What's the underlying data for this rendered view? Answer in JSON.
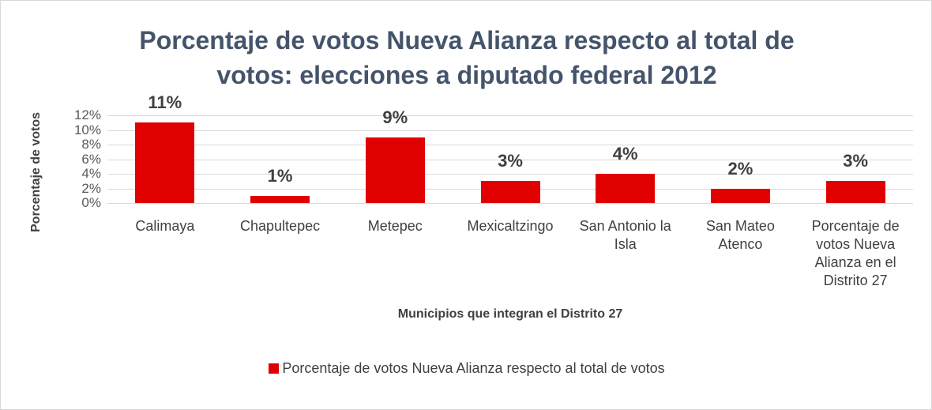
{
  "chart_data": {
    "type": "bar",
    "title": "Porcentaje de votos Nueva Alianza respecto al total de votos: elecciones a diputado federal 2012",
    "x_label": "Municipios que integran el Distrito 27",
    "y_label": "Porcentaje de votos",
    "categories": [
      "Calimaya",
      "Chapultepec",
      "Metepec",
      "Mexicaltzingo",
      "San Antonio la Isla",
      "San Mateo Atenco",
      "Porcentaje de votos Nueva Alianza en el Distrito 27"
    ],
    "series": [
      {
        "name": "Porcentaje de votos Nueva Alianza respecto al total de votos",
        "color": "#e00000",
        "values": [
          11,
          1,
          9,
          3,
          4,
          2,
          3
        ],
        "value_labels": [
          "11%",
          "1%",
          "9%",
          "3%",
          "4%",
          "2%",
          "3%"
        ]
      }
    ],
    "ylim": [
      0,
      12
    ],
    "yticks": [
      {
        "value": 0,
        "label": "0%"
      },
      {
        "value": 2,
        "label": "2%"
      },
      {
        "value": 4,
        "label": "4%"
      },
      {
        "value": 6,
        "label": "6%"
      },
      {
        "value": 8,
        "label": "8%"
      },
      {
        "value": 10,
        "label": "10%"
      },
      {
        "value": 12,
        "label": "12%"
      }
    ],
    "grid": true,
    "legend": "bottom"
  }
}
